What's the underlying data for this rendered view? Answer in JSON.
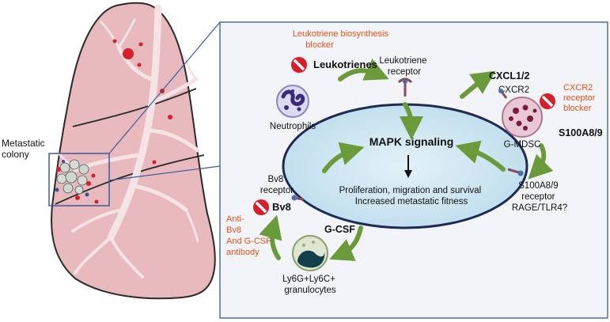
{
  "labels": {
    "metastatic_colony": [
      "Metastatic",
      "colony"
    ],
    "leukotriene_blocker": [
      "Leukotriene biosynthesis",
      "blocker"
    ],
    "leukotrienes": "Leukotrienes",
    "leukotriene_receptor": [
      "Leukotriene",
      "receptor"
    ],
    "neutrophils": "Neutrophils",
    "cxcl12": "CXCL1/2",
    "cxcr2": "CXCR2",
    "cxcr2_blocker": [
      "CXCR2",
      "receptor",
      "blocker"
    ],
    "g_mdsc": "G-MDSC",
    "s100a89": "S100A8/9",
    "s100_receptor": [
      "S100A8/9",
      "receptor",
      "RAGE/TLR4?"
    ],
    "mapk": "MAPK signaling",
    "outcome": [
      "Proliferation, migration and survival",
      "Increased metastatic fitness"
    ],
    "bv8_receptor": [
      "Bv8",
      "receptor"
    ],
    "bv8": "Bv8",
    "anti_bv8": [
      "Anti-",
      "Bv8",
      "And G-CSF",
      "antibody"
    ],
    "gcsf": "G-CSF",
    "granulocytes": [
      "Ly6G+Ly6C+",
      "granulocytes"
    ]
  },
  "colors": {
    "panel_bg": "#f2f4f7",
    "panel_border": "#4a6fa5",
    "ellipse_fill": "#cfe6f2",
    "ellipse_stroke": "#1e2b55",
    "arrow_green": "#6a9a3a",
    "blocker_red": "#d81e2a",
    "blocker_text": "#e0501e",
    "lung_fill": "#e8b9bd"
  }
}
